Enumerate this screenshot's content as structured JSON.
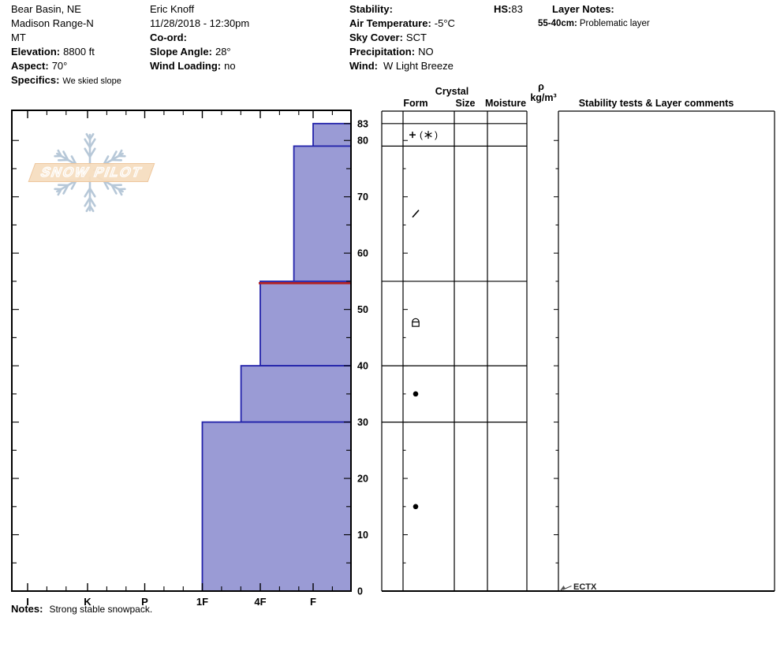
{
  "header": {
    "location": {
      "area": "Bear Basin, NE",
      "range": "Madison Range-N",
      "state": "MT",
      "elevation_label": "Elevation:",
      "elevation_value": "8800 ft",
      "aspect_label": "Aspect:",
      "aspect_value": "70°",
      "specifics_label": "Specifics:",
      "specifics_value": "We skied slope"
    },
    "observer": {
      "name": "Eric Knoff",
      "datetime": "11/28/2018 - 12:30pm",
      "coord_label": "Co-ord:",
      "slope_angle_label": "Slope Angle:",
      "slope_angle_value": "28°",
      "wind_loading_label": "Wind Loading:",
      "wind_loading_value": "no"
    },
    "conditions": {
      "stability_label": "Stability:",
      "air_temp_label": "Air Temperature:",
      "air_temp_value": "-5°C",
      "sky_label": "Sky Cover:",
      "sky_value": "SCT",
      "precip_label": "Precipitation:",
      "precip_value": "NO",
      "wind_label": "Wind:",
      "wind_value": "W Light Breeze"
    },
    "hs_label": "HS:",
    "hs_value": "83",
    "layer_notes_label": "Layer Notes:",
    "layer_note_range": "55-40cm:",
    "layer_note_text": "Problematic layer"
  },
  "logo_text": "SNOW PILOT",
  "table_headers": {
    "crystal": "Crystal",
    "form": "Form",
    "size": "Size",
    "moisture": "Moisture",
    "rho": "ρ",
    "rho_units": "kg/m³",
    "stability": "Stability tests & Layer comments"
  },
  "notes_label": "Notes:",
  "notes_value": "Strong stable snowpack.",
  "chart_data": {
    "type": "snow-profile-hardness-bar",
    "total_height_cm": 83,
    "depth_axis": {
      "unit": "cm",
      "min": 0,
      "max": 83,
      "tick_labels": [
        83,
        80,
        70,
        60,
        50,
        40,
        30,
        20,
        10,
        0
      ]
    },
    "hardness_axis": {
      "categories": [
        "I",
        "K",
        "P",
        "1F",
        "4F",
        "F"
      ],
      "note": "hand hardness, hardest (I) at left, softest (F) at right"
    },
    "layers": [
      {
        "top_cm": 83,
        "bottom_cm": 79,
        "hardness": "F",
        "form_glyph": "plus_stellar",
        "form_text": "+ (✶)",
        "size": "",
        "moisture": "",
        "density": "",
        "comment": ""
      },
      {
        "top_cm": 79,
        "bottom_cm": 55,
        "hardness": "F+",
        "form_glyph": "slash",
        "form_text": "/",
        "size": "",
        "moisture": "",
        "density": "",
        "comment": ""
      },
      {
        "top_cm": 55,
        "bottom_cm": 40,
        "hardness": "4F",
        "form_glyph": "dome_square",
        "form_text": "⌑",
        "size": "",
        "moisture": "",
        "density": "",
        "comment": ""
      },
      {
        "top_cm": 40,
        "bottom_cm": 30,
        "hardness": "4F+",
        "form_glyph": "dot",
        "form_text": "●",
        "size": "",
        "moisture": "",
        "density": "",
        "comment": ""
      },
      {
        "top_cm": 30,
        "bottom_cm": 0,
        "hardness": "1F",
        "form_glyph": "dot",
        "form_text": "●",
        "size": "",
        "moisture": "",
        "density": "",
        "comment": ""
      }
    ],
    "interface_flag": {
      "depth_cm": 55,
      "meaning": "problematic layer interface"
    },
    "stability_annotation": {
      "text": "ECTX",
      "at_depth_cm": 0
    },
    "colors": {
      "bar_fill": "#9a9bd5",
      "bar_border": "#2222aa",
      "flag_line": "#b32020",
      "axis": "#000000",
      "logo_banner": "#f6ddc0",
      "logo_flake": "#b7c8d8"
    }
  }
}
